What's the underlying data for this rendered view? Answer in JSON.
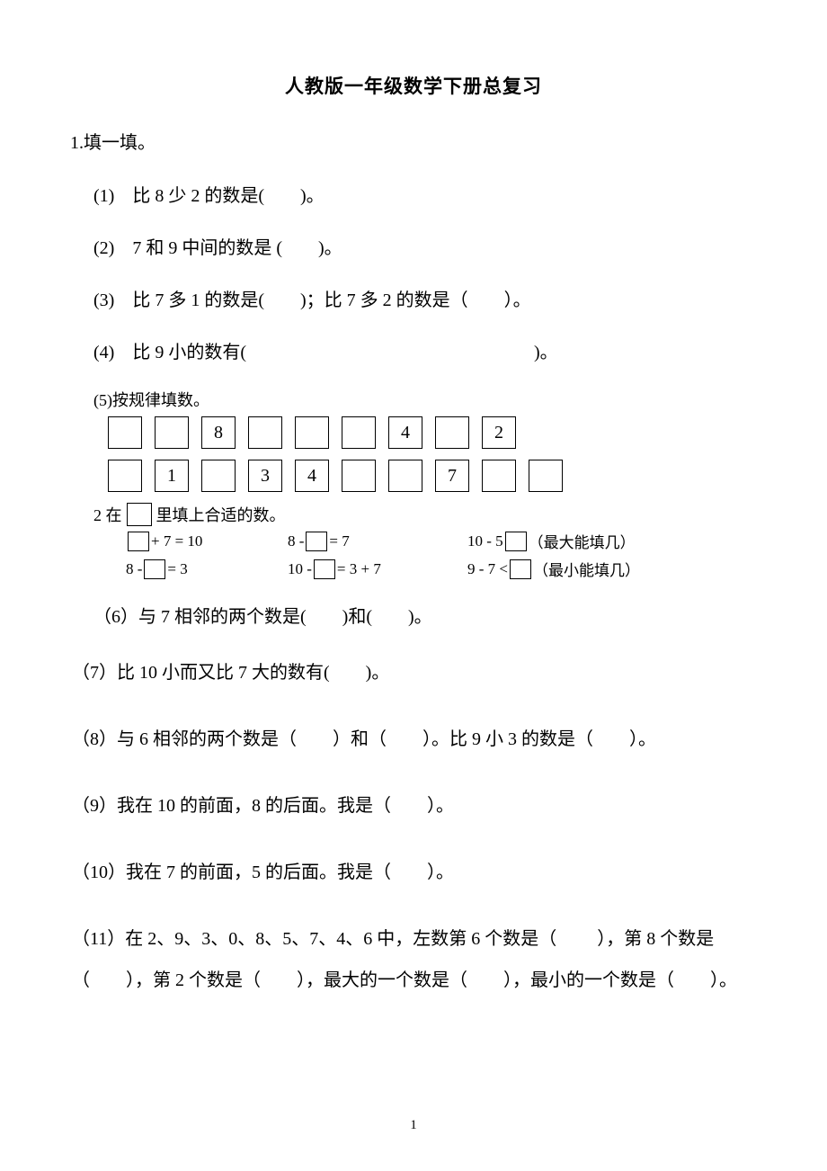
{
  "title": "人教版一年级数学下册总复习",
  "heading1": "1.填一填。",
  "items": {
    "i1": "(1)　比 8 少 2 的数是(　　)。",
    "i2": "(2)　7 和 9 中间的数是 (　　)。",
    "i3": "(3)　比 7 多 1 的数是(　　)；比 7 多 2 的数是（　　）。",
    "i4": "(4)　比 9 小的数有(　　　　　　　　　　　　　　　　)。",
    "i5_label": "(5)按规律填数。",
    "row1": [
      "",
      "",
      "8",
      "",
      "",
      "",
      "4",
      "",
      "2"
    ],
    "row2": [
      "",
      "1",
      "",
      "3",
      "4",
      "",
      "",
      "7",
      "",
      ""
    ],
    "q2_pre": "2 在",
    "q2_post": "里填上合适的数。",
    "eq": {
      "a1_post": " + 7  =  10",
      "b1_pre": "8 - ",
      "b1_post": "  =  7",
      "c1_pre": "10 - 5 ",
      "c1_note": "（最大能填几）",
      "a2_pre": "8 -  ",
      "a2_post": " = 3",
      "b2_pre": "10 - ",
      "b2_post": " = 3 + 7",
      "c2_pre": "9 - 7 < ",
      "c2_note": "（最小能填几）"
    },
    "i6": "（6）与 7 相邻的两个数是(　　)和(　　)。",
    "i7": "（7）比 10 小而又比 7 大的数有(　　)。",
    "i8": "（8）与 6 相邻的两个数是（　　）和（　　）。比 9 小 3 的数是（　　）。",
    "i9": "（9）我在 10 的前面，8 的后面。我是（　　）。",
    "i10": "（10）我在 7 的前面，5 的后面。我是（　　）。",
    "i11": "（11）在 2、9、3、0、8、5、7、4、6 中，左数第 6 个数是（　 　），第 8 个数是（　　），第 2 个数是（　　），最大的一个数是（　　），最小的一个数是（　　）。"
  },
  "page_number": "1"
}
